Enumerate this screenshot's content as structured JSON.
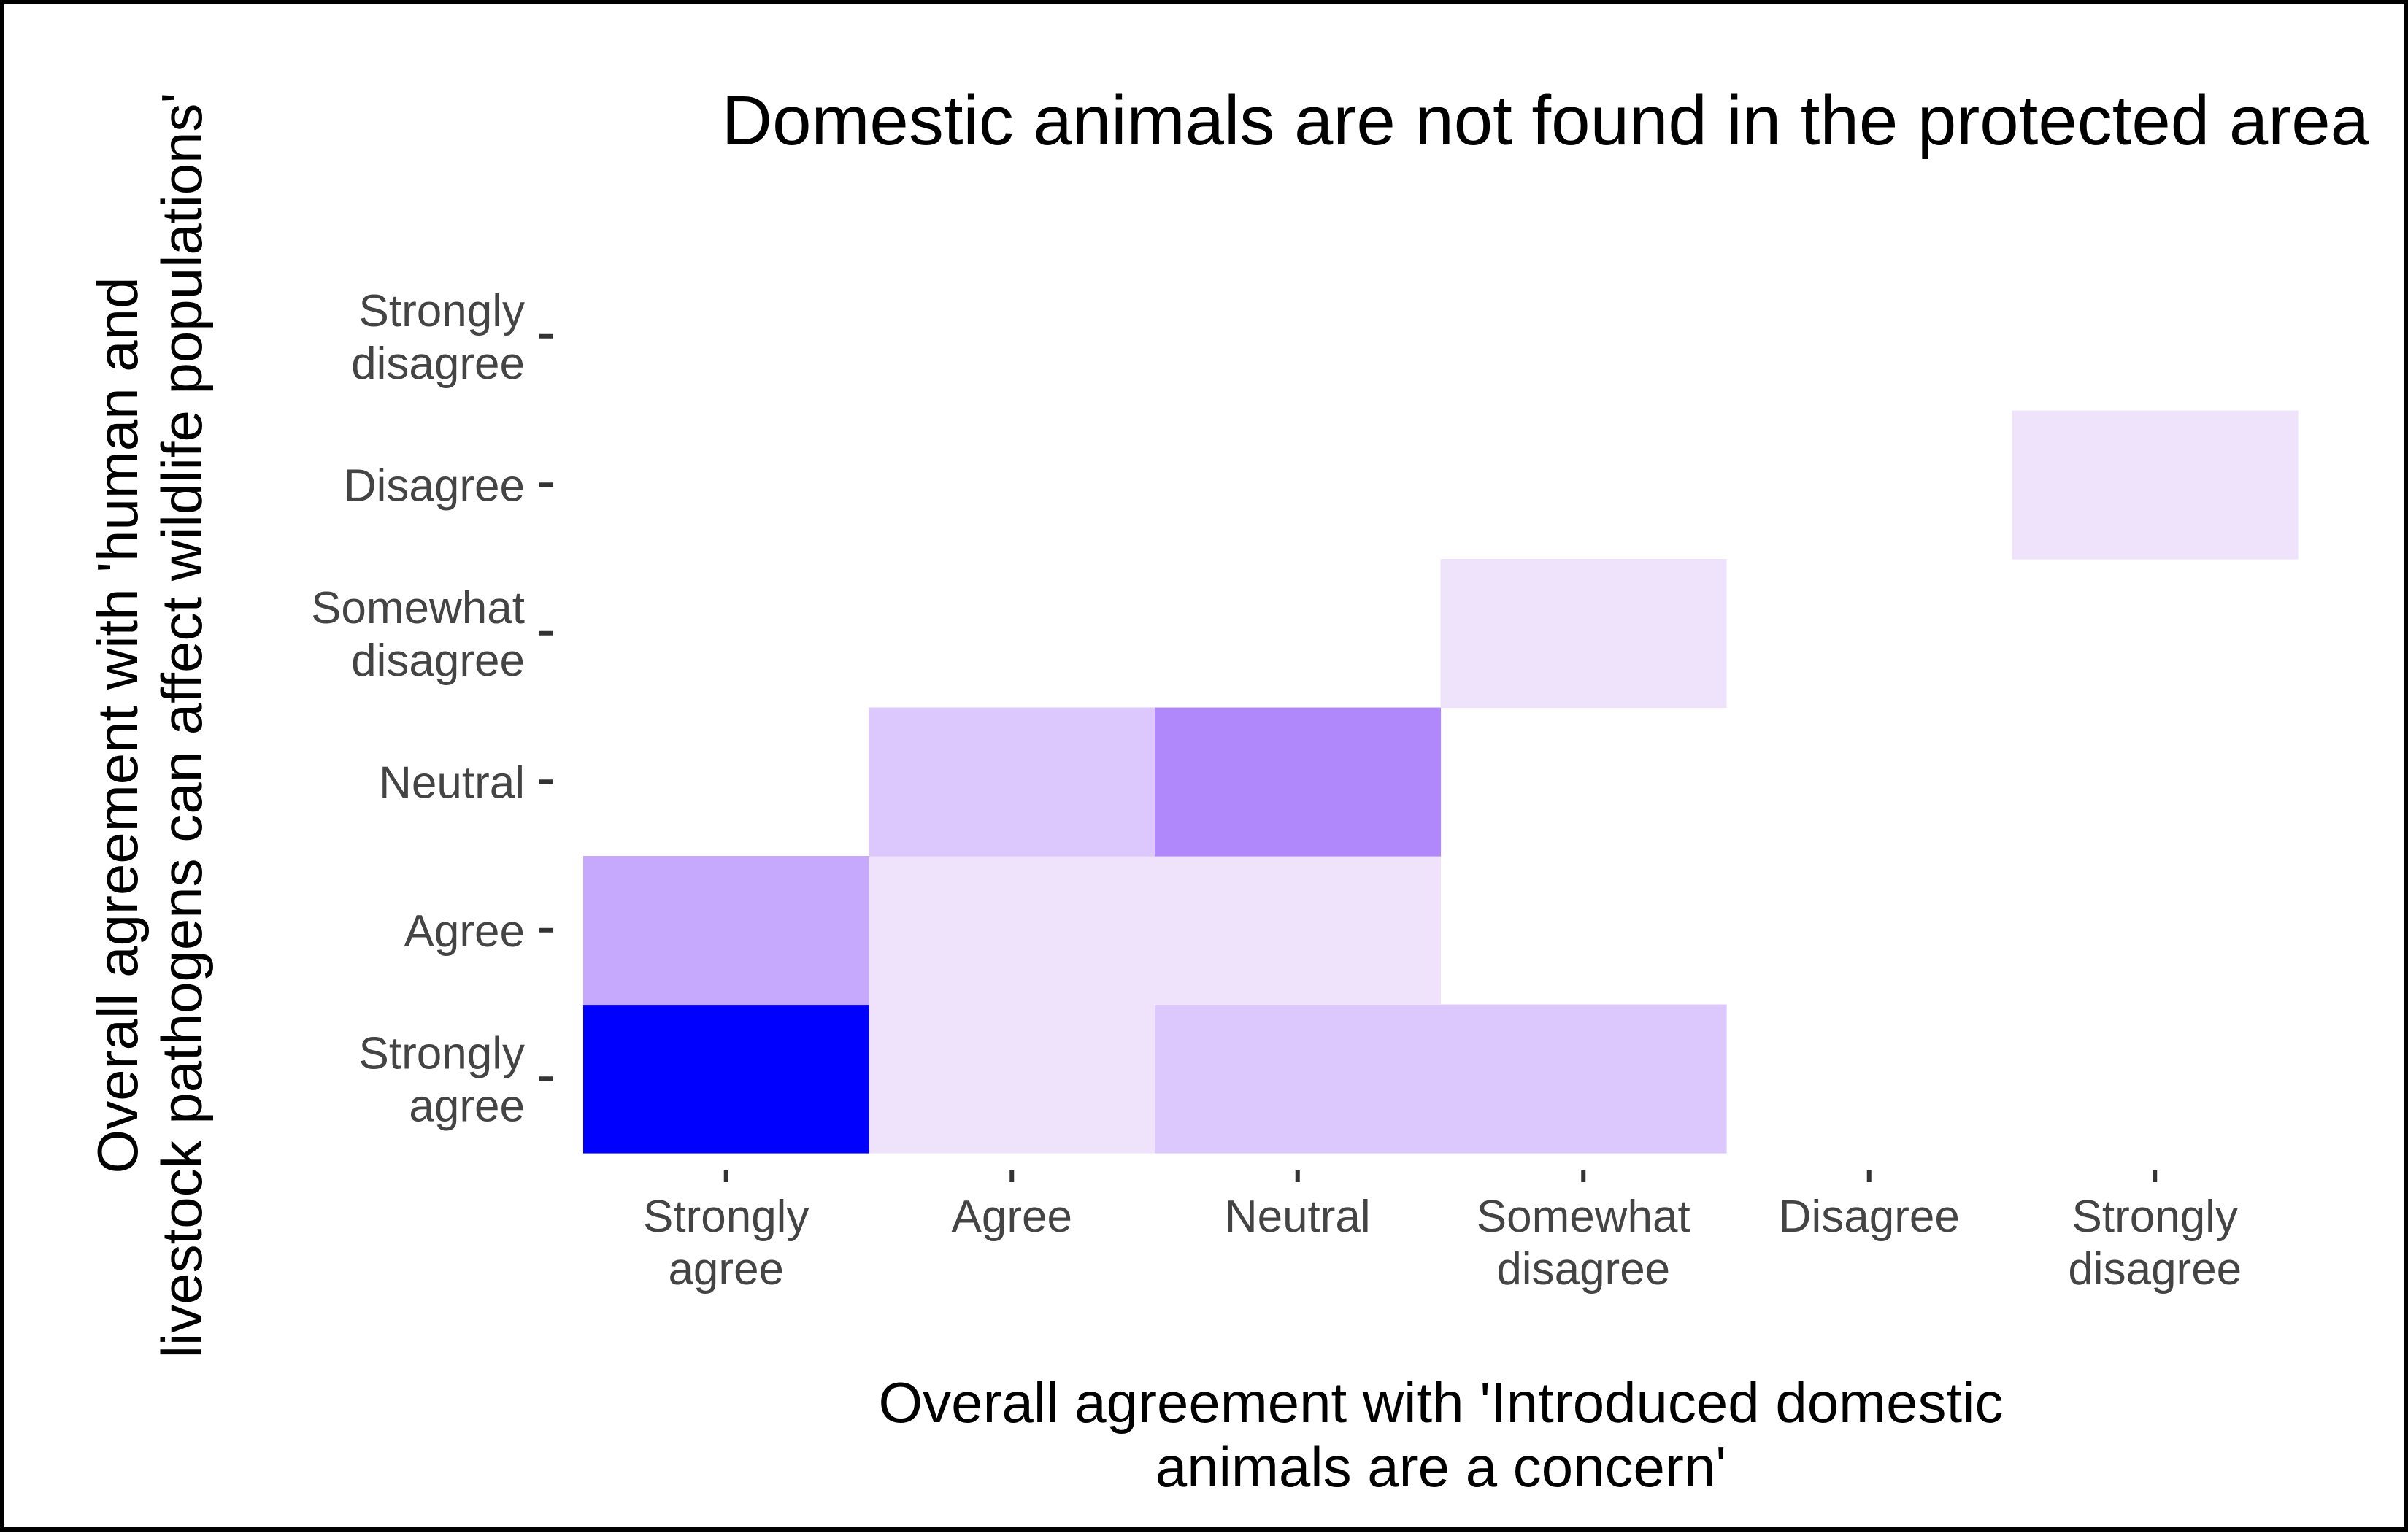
{
  "chart_data": {
    "type": "heatmap",
    "title": "Domestic animals are not found in the protected area",
    "xlabel": "Overall agreement with 'Introduced domestic animals are a concern'",
    "ylabel": "Overall agreement with 'human and livestock pathogens can affect wildlife populations'",
    "x_categories": [
      "Strongly agree",
      "Agree",
      "Neutral",
      "Somewhat disagree",
      "Disagree",
      "Strongly disagree"
    ],
    "y_categories": [
      "Strongly agree",
      "Agree",
      "Neutral",
      "Somewhat disagree",
      "Disagree",
      "Strongly disagree"
    ],
    "grid": false,
    "legend": "none",
    "colors": {
      "low": "#efe3fc",
      "high": "#0000ff"
    },
    "cells": [
      {
        "x": "Strongly agree",
        "y": "Strongly agree",
        "value": 1.0,
        "color": "#0000ff"
      },
      {
        "x": "Agree",
        "y": "Strongly agree",
        "value": 0.1,
        "color": "#efe3fc"
      },
      {
        "x": "Neutral",
        "y": "Strongly agree",
        "value": 0.2,
        "color": "#dcc8fc"
      },
      {
        "x": "Somewhat disagree",
        "y": "Strongly agree",
        "value": 0.2,
        "color": "#dcc8fc"
      },
      {
        "x": "Strongly agree",
        "y": "Agree",
        "value": 0.35,
        "color": "#c6a8fc"
      },
      {
        "x": "Agree",
        "y": "Agree",
        "value": 0.1,
        "color": "#efe3fc"
      },
      {
        "x": "Neutral",
        "y": "Agree",
        "value": 0.1,
        "color": "#efe3fc"
      },
      {
        "x": "Agree",
        "y": "Neutral",
        "value": 0.2,
        "color": "#dcc8fc"
      },
      {
        "x": "Neutral",
        "y": "Neutral",
        "value": 0.5,
        "color": "#b088fc"
      },
      {
        "x": "Somewhat disagree",
        "y": "Somewhat disagree",
        "value": 0.1,
        "color": "#efe3fc"
      },
      {
        "x": "Strongly disagree",
        "y": "Disagree",
        "value": 0.1,
        "color": "#efe3fc"
      }
    ]
  }
}
